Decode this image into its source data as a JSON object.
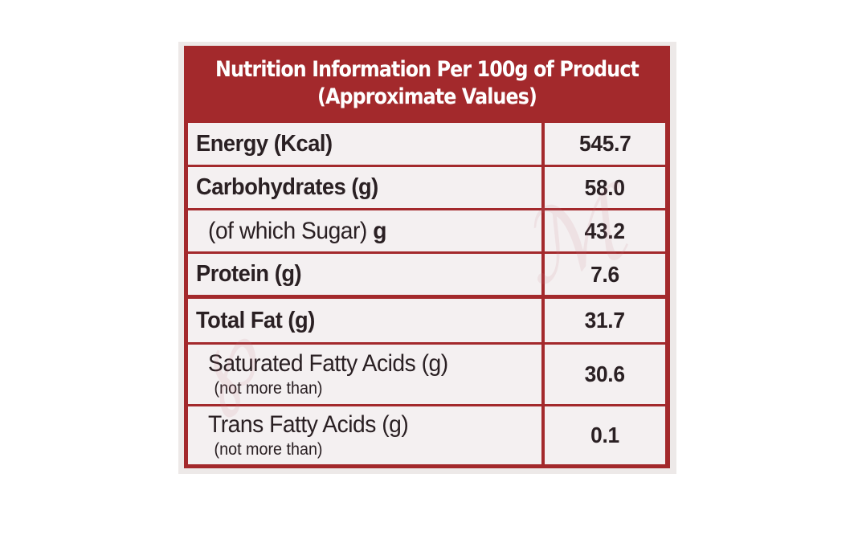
{
  "header": {
    "line1": "Nutrition Information Per 100g of Product",
    "line2": "(Approximate Values)"
  },
  "rows": [
    {
      "name": "Energy (Kcal)",
      "value": "545.7"
    },
    {
      "name": "Carbohydrates (g)",
      "value": "58.0"
    },
    {
      "name": "(of which Sugar)",
      "unit": "g",
      "value": "43.2"
    },
    {
      "name": "Protein (g)",
      "value": "7.6"
    },
    {
      "name": "Total Fat (g)",
      "value": "31.7"
    },
    {
      "name": "Saturated Fatty Acids (g)",
      "note": "(not more than)",
      "value": "30.6"
    },
    {
      "name": "Trans Fatty Acids (g)",
      "note": "(not more than)",
      "value": "0.1"
    }
  ],
  "colors": {
    "frame": "#a3292c",
    "cell_background": "#f4f0f1",
    "header_text": "#ffffff",
    "body_text": "#2a2023"
  }
}
